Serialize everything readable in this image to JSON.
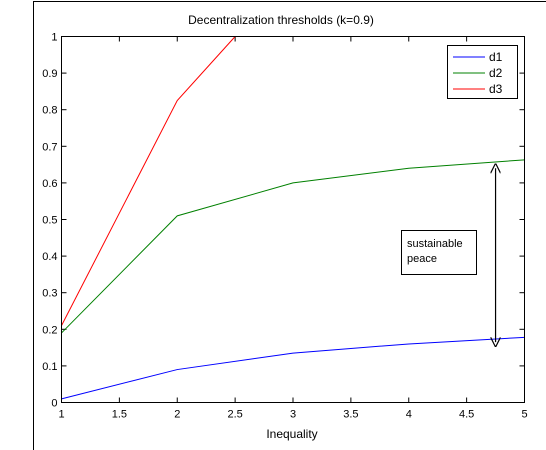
{
  "chart_data": {
    "type": "line",
    "title": "Decentralization thresholds (k=0.9)",
    "xlabel": "Inequality",
    "ylabel": "",
    "xlim": [
      1,
      5
    ],
    "ylim": [
      0,
      1
    ],
    "xticks": [
      "1",
      "1.5",
      "2",
      "2.5",
      "3",
      "3.5",
      "4",
      "4.5",
      "5"
    ],
    "yticks": [
      "0",
      "0.1",
      "0.2",
      "0.3",
      "0.4",
      "0.5",
      "0.6",
      "0.7",
      "0.8",
      "0.9",
      "1"
    ],
    "grid": false,
    "legend": "top-right",
    "series": [
      {
        "name": "d1",
        "color": "#0000ff",
        "x": [
          1,
          2,
          3,
          4,
          5
        ],
        "y": [
          0.01,
          0.09,
          0.135,
          0.16,
          0.178
        ]
      },
      {
        "name": "d2",
        "color": "#008000",
        "x": [
          1,
          2,
          3,
          4,
          5
        ],
        "y": [
          0.19,
          0.51,
          0.6,
          0.64,
          0.663
        ]
      },
      {
        "name": "d3",
        "color": "#ff0000",
        "x": [
          1,
          2,
          2.5
        ],
        "y": [
          0.21,
          0.825,
          1.0
        ]
      }
    ],
    "annotations": [
      {
        "text_lines": [
          "sustainable",
          "peace"
        ]
      }
    ],
    "arrow": {
      "x": 4.75,
      "y_from": 0.165,
      "y_to": 0.64
    }
  }
}
